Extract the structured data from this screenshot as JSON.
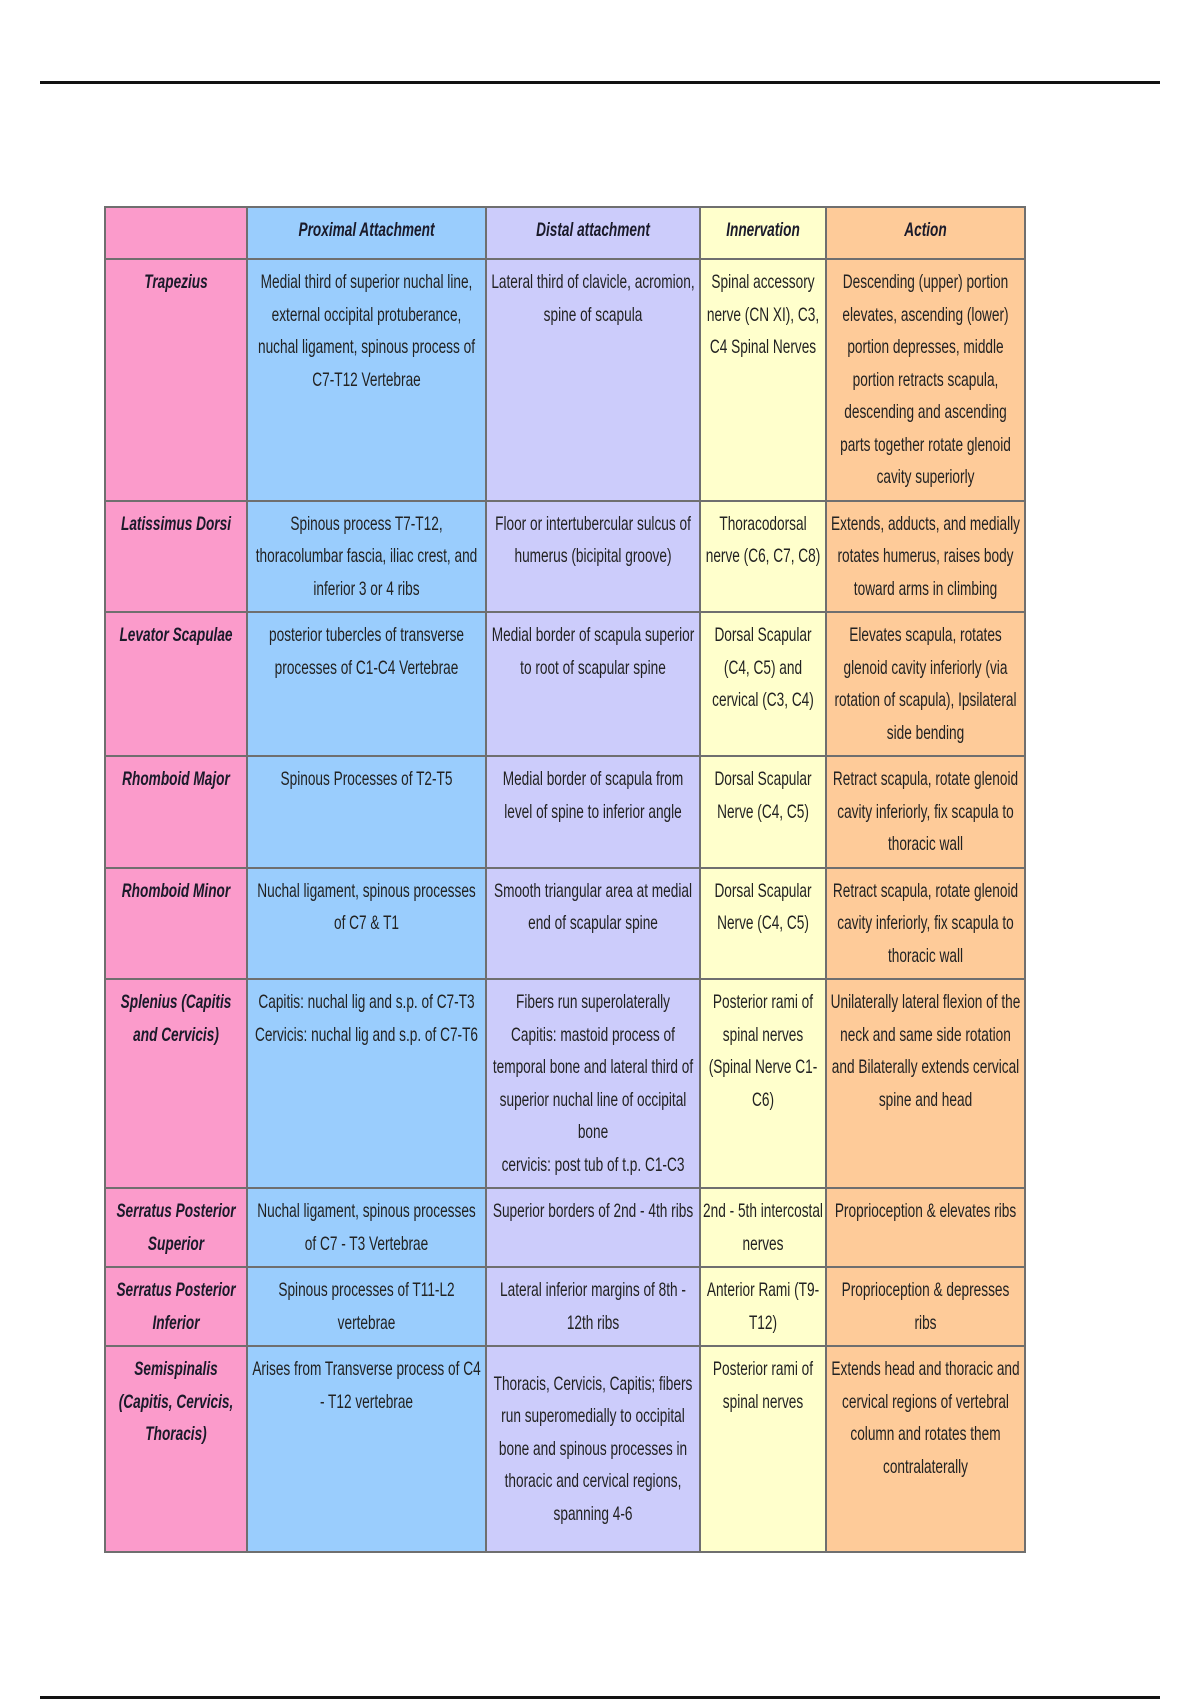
{
  "headers": [
    "",
    "Proximal Attachment",
    "Distal attachment",
    "Innervation",
    "Action"
  ],
  "rows": [
    {
      "muscle": "Trapezius",
      "proximal": "Medial third of superior nuchal line, external occipital protuberance, nuchal ligament, spinous process of C7-T12 Vertebrae",
      "distal": "Lateral third of clavicle, acromion, spine of scapula",
      "innervation": "Spinal accessory nerve (CN XI), C3, C4 Spinal Nerves",
      "action": "Descending (upper) portion elevates, ascending (lower) portion depresses, middle portion retracts scapula, descending and ascending parts together rotate glenoid cavity superiorly"
    },
    {
      "muscle": "Latissimus Dorsi",
      "proximal": "Spinous process T7-T12, thoracolumbar fascia, iliac crest, and inferior 3 or 4 ribs",
      "distal": "Floor or intertubercular sulcus of humerus (bicipital groove)",
      "innervation": "Thoracodorsal nerve (C6, C7, C8)",
      "action": "Extends, adducts, and medially rotates humerus, raises body toward arms in climbing"
    },
    {
      "muscle": "Levator Scapulae",
      "proximal": "posterior tubercles of transverse processes of C1-C4 Vertebrae",
      "distal": "Medial border of scapula superior to root of scapular spine",
      "innervation": "Dorsal Scapular (C4, C5) and cervical (C3, C4)",
      "action": "Elevates scapula, rotates glenoid cavity inferiorly (via rotation of scapula), Ipsilateral side bending"
    },
    {
      "muscle": "Rhomboid Major",
      "proximal": "Spinous Processes of T2-T5",
      "distal": "Medial border of scapula from level of spine to inferior angle",
      "innervation": "Dorsal Scapular Nerve (C4, C5)",
      "action": "Retract scapula, rotate glenoid cavity inferiorly, fix scapula to thoracic wall"
    },
    {
      "muscle": "Rhomboid Minor",
      "proximal": "Nuchal ligament, spinous processes of C7 & T1",
      "distal": "Smooth triangular area at medial end of scapular spine",
      "innervation": "Dorsal Scapular Nerve (C4, C5)",
      "action": "Retract scapula, rotate glenoid cavity inferiorly, fix scapula to thoracic wall"
    },
    {
      "muscle": "Splenius (Capitis and Cervicis)",
      "proximal": "Capitis: nuchal lig and s.p. of C7-T3\nCervicis: nuchal lig and s.p. of C7-T6",
      "distal": "Fibers run superolaterally\nCapitis: mastoid process of temporal bone and lateral third of superior nuchal line of occipital bone\ncervicis: post tub of t.p. C1-C3",
      "innervation": "Posterior rami of spinal nerves (Spinal Nerve C1-C6)",
      "action": "Unilaterally lateral flexion of the neck and same side rotation and Bilaterally extends cervical spine and head"
    },
    {
      "muscle": "Serratus Posterior Superior",
      "proximal": "Nuchal ligament, spinous processes of C7 - T3 Vertebrae",
      "distal": "Superior borders of 2nd - 4th ribs",
      "innervation": "2nd - 5th intercostal nerves",
      "action": "Proprioception & elevates ribs"
    },
    {
      "muscle": "Serratus Posterior Inferior",
      "proximal": "Spinous processes of T11-L2 vertebrae",
      "distal": "Lateral inferior margins of 8th - 12th ribs",
      "innervation": "Anterior Rami (T9-T12)",
      "action": "Proprioception & depresses ribs"
    },
    {
      "muscle": "Semispinalis (Capitis, Cervicis, Thoracis)",
      "proximal": "Arises from Transverse process of C4 - T12 vertebrae",
      "distal": "Thoracis, Cervicis, Capitis; fibers run superomedially to occipital bone and spinous processes in thoracic and cervical regions, spanning 4-6",
      "innervation": "Posterior rami of spinal nerves",
      "action": "Extends head and thoracic and cervical regions of vertebral column and rotates them contralaterally"
    }
  ],
  "colors": {
    "muscle": "#fb9bcb",
    "proximal": "#9acdfd",
    "distal": "#ccccfb",
    "innervation": "#ffffcc",
    "action": "#fecb99"
  }
}
